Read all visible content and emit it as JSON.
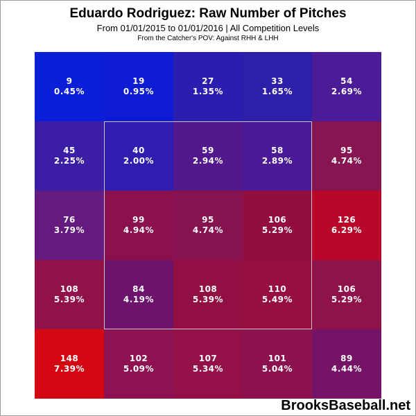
{
  "title": "Eduardo Rodriguez: Raw Number of Pitches",
  "subtitle": "From 01/01/2015 to 01/01/2016 | All Competition Levels",
  "subtitle2": "From the Catcher's POV:  Against RHH & LHH",
  "watermark": "BrooksBaseball.net",
  "chart_data": {
    "type": "heatmap",
    "title": "Eduardo Rodriguez: Raw Number of Pitches",
    "subtitle": "From 01/01/2015 to 01/01/2016 | All Competition Levels",
    "note": "From the Catcher's POV:  Against RHH & LHH",
    "rows": 5,
    "cols": 5,
    "cells": [
      [
        {
          "count": "9",
          "pct": "0.45%",
          "color": "#0b1fd9"
        },
        {
          "count": "19",
          "pct": "0.95%",
          "color": "#0d1bd2"
        },
        {
          "count": "27",
          "pct": "1.35%",
          "color": "#2b1db0"
        },
        {
          "count": "33",
          "pct": "1.65%",
          "color": "#2e1fa8"
        },
        {
          "count": "54",
          "pct": "2.69%",
          "color": "#4c1b98"
        }
      ],
      [
        {
          "count": "45",
          "pct": "2.25%",
          "color": "#3c1ea6"
        },
        {
          "count": "40",
          "pct": "2.00%",
          "color": "#301daf"
        },
        {
          "count": "59",
          "pct": "2.94%",
          "color": "#53198c"
        },
        {
          "count": "58",
          "pct": "2.89%",
          "color": "#4a1a97"
        },
        {
          "count": "95",
          "pct": "4.74%",
          "color": "#861552"
        }
      ],
      [
        {
          "count": "76",
          "pct": "3.79%",
          "color": "#641a7e"
        },
        {
          "count": "99",
          "pct": "4.94%",
          "color": "#8b104e"
        },
        {
          "count": "95",
          "pct": "4.74%",
          "color": "#86124f"
        },
        {
          "count": "106",
          "pct": "5.29%",
          "color": "#930e40"
        },
        {
          "count": "126",
          "pct": "6.29%",
          "color": "#b80729"
        }
      ],
      [
        {
          "count": "108",
          "pct": "5.39%",
          "color": "#911249"
        },
        {
          "count": "84",
          "pct": "4.19%",
          "color": "#6c146c"
        },
        {
          "count": "108",
          "pct": "5.39%",
          "color": "#920f44"
        },
        {
          "count": "110",
          "pct": "5.49%",
          "color": "#970e40"
        },
        {
          "count": "106",
          "pct": "5.29%",
          "color": "#8f124a"
        }
      ],
      [
        {
          "count": "148",
          "pct": "7.39%",
          "color": "#d40812"
        },
        {
          "count": "102",
          "pct": "5.09%",
          "color": "#8e1151"
        },
        {
          "count": "107",
          "pct": "5.34%",
          "color": "#931049"
        },
        {
          "count": "101",
          "pct": "5.04%",
          "color": "#8c124f"
        },
        {
          "count": "89",
          "pct": "4.44%",
          "color": "#751466"
        }
      ]
    ]
  }
}
